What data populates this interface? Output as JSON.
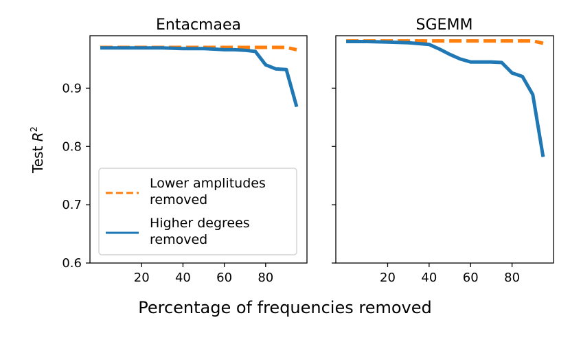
{
  "chart_data": [
    {
      "type": "line",
      "title": "Entacmaea",
      "xlabel": "Percentage of frequencies removed",
      "ylabel": "Test R²",
      "xlim": [
        -5,
        100
      ],
      "ylim": [
        0.6,
        0.99
      ],
      "xticks": [
        20,
        40,
        60,
        80
      ],
      "yticks": [
        0.6,
        0.7,
        0.8,
        0.9
      ],
      "series": [
        {
          "name": "Lower amplitudes removed",
          "color": "#ff7f0e",
          "style": "dashed",
          "x": [
            0,
            10,
            20,
            30,
            40,
            50,
            60,
            70,
            75,
            80,
            85,
            90,
            95
          ],
          "y": [
            0.97,
            0.97,
            0.97,
            0.97,
            0.97,
            0.97,
            0.97,
            0.97,
            0.97,
            0.97,
            0.97,
            0.97,
            0.966
          ]
        },
        {
          "name": "Higher degrees removed",
          "color": "#1f77b4",
          "style": "solid",
          "x": [
            0,
            10,
            20,
            30,
            40,
            50,
            55,
            60,
            65,
            70,
            75,
            80,
            85,
            90,
            95
          ],
          "y": [
            0.969,
            0.969,
            0.969,
            0.969,
            0.968,
            0.968,
            0.967,
            0.966,
            0.966,
            0.965,
            0.963,
            0.94,
            0.933,
            0.932,
            0.868
          ]
        }
      ],
      "legend": {
        "placement": "lower-left",
        "entries": [
          {
            "line1": "Lower amplitudes",
            "line2": "removed",
            "color": "#ff7f0e",
            "style": "dashed"
          },
          {
            "line1": "Higher degrees",
            "line2": "removed",
            "color": "#1f77b4",
            "style": "solid"
          }
        ]
      }
    },
    {
      "type": "line",
      "title": "SGEMM",
      "xlabel": "Percentage of frequencies removed",
      "ylabel": "",
      "xlim": [
        -5,
        100
      ],
      "ylim": [
        0.6,
        0.99
      ],
      "xticks": [
        20,
        40,
        60,
        80
      ],
      "yticks": [
        0.6,
        0.7,
        0.8,
        0.9
      ],
      "series": [
        {
          "name": "Lower amplitudes removed",
          "color": "#ff7f0e",
          "style": "dashed",
          "x": [
            0,
            10,
            20,
            30,
            40,
            50,
            60,
            70,
            80,
            90,
            95
          ],
          "y": [
            0.981,
            0.981,
            0.981,
            0.981,
            0.981,
            0.981,
            0.981,
            0.981,
            0.981,
            0.981,
            0.977
          ]
        },
        {
          "name": "Higher degrees removed",
          "color": "#1f77b4",
          "style": "solid",
          "x": [
            0,
            10,
            20,
            30,
            40,
            45,
            50,
            55,
            60,
            65,
            70,
            75,
            80,
            85,
            90,
            95
          ],
          "y": [
            0.98,
            0.98,
            0.979,
            0.978,
            0.975,
            0.967,
            0.958,
            0.95,
            0.945,
            0.945,
            0.945,
            0.944,
            0.926,
            0.92,
            0.889,
            0.782
          ]
        }
      ]
    }
  ],
  "figure": {
    "xlabel": "Percentage of frequencies removed",
    "ylabel_prefix": "Test ",
    "ylabel_var": "R",
    "ylabel_sup": "2"
  }
}
